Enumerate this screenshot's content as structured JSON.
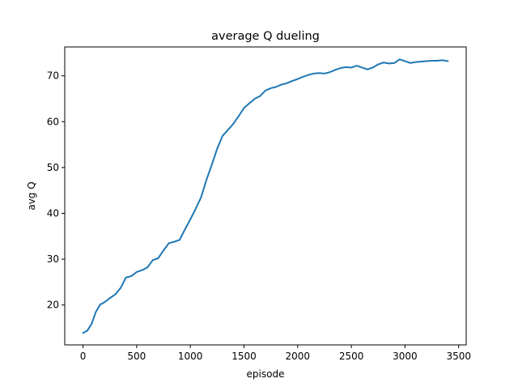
{
  "chart_data": {
    "type": "line",
    "title": "average Q dueling",
    "xlabel": "episode",
    "ylabel": "avg Q",
    "xlim": [
      -170,
      3570
    ],
    "ylim": [
      11.3,
      76.3
    ],
    "xticks": [
      0,
      500,
      1000,
      1500,
      2000,
      2500,
      3000,
      3500
    ],
    "yticks": [
      20,
      30,
      40,
      50,
      60,
      70
    ],
    "grid": false,
    "line_color": "#1f77b4",
    "series": [
      {
        "x": [
          0,
          40,
          80,
          120,
          160,
          200,
          250,
          300,
          350,
          400,
          450,
          500,
          550,
          600,
          650,
          700,
          750,
          800,
          850,
          900,
          950,
          1000,
          1050,
          1100,
          1150,
          1200,
          1250,
          1300,
          1350,
          1400,
          1450,
          1500,
          1550,
          1600,
          1650,
          1700,
          1750,
          1800,
          1850,
          1900,
          1950,
          2000,
          2050,
          2100,
          2150,
          2200,
          2250,
          2300,
          2350,
          2400,
          2450,
          2500,
          2550,
          2600,
          2650,
          2700,
          2750,
          2800,
          2850,
          2900,
          2950,
          3000,
          3050,
          3100,
          3150,
          3200,
          3250,
          3300,
          3350,
          3400
        ],
        "y": [
          13.9,
          14.4,
          15.9,
          18.5,
          20.1,
          20.6,
          21.5,
          22.3,
          23.7,
          26.0,
          26.3,
          27.2,
          27.6,
          28.2,
          29.8,
          30.2,
          31.9,
          33.5,
          33.8,
          34.2,
          36.5,
          38.7,
          41.0,
          43.5,
          47.3,
          50.6,
          54.1,
          56.9,
          58.2,
          59.5,
          61.2,
          63.0,
          64.0,
          65.0,
          65.6,
          66.8,
          67.3,
          67.6,
          68.1,
          68.4,
          68.9,
          69.3,
          69.8,
          70.2,
          70.5,
          70.6,
          70.5,
          70.8,
          71.3,
          71.7,
          71.9,
          71.8,
          72.2,
          71.8,
          71.4,
          71.8,
          72.5,
          72.9,
          72.7,
          72.8,
          73.6,
          73.2,
          72.8,
          73.0,
          73.1,
          73.2,
          73.3,
          73.3,
          73.4,
          73.2
        ]
      }
    ]
  }
}
